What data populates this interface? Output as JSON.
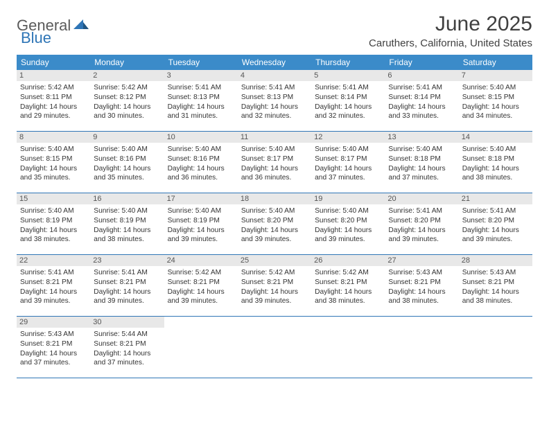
{
  "logo": {
    "part1": "General",
    "part2": "Blue"
  },
  "title": "June 2025",
  "location": "Caruthers, California, United States",
  "colors": {
    "header_bg": "#3b8bc9",
    "header_text": "#ffffff",
    "daynum_bg": "#e8e8e8",
    "daynum_text": "#555555",
    "border": "#2e75b6",
    "logo_gray": "#5a5a5a",
    "logo_blue": "#2e75b6",
    "title_color": "#404040"
  },
  "weekdays": [
    "Sunday",
    "Monday",
    "Tuesday",
    "Wednesday",
    "Thursday",
    "Friday",
    "Saturday"
  ],
  "weeks": [
    [
      {
        "n": "1",
        "sr": "5:42 AM",
        "ss": "8:11 PM",
        "dl": "14 hours and 29 minutes."
      },
      {
        "n": "2",
        "sr": "5:42 AM",
        "ss": "8:12 PM",
        "dl": "14 hours and 30 minutes."
      },
      {
        "n": "3",
        "sr": "5:41 AM",
        "ss": "8:13 PM",
        "dl": "14 hours and 31 minutes."
      },
      {
        "n": "4",
        "sr": "5:41 AM",
        "ss": "8:13 PM",
        "dl": "14 hours and 32 minutes."
      },
      {
        "n": "5",
        "sr": "5:41 AM",
        "ss": "8:14 PM",
        "dl": "14 hours and 32 minutes."
      },
      {
        "n": "6",
        "sr": "5:41 AM",
        "ss": "8:14 PM",
        "dl": "14 hours and 33 minutes."
      },
      {
        "n": "7",
        "sr": "5:40 AM",
        "ss": "8:15 PM",
        "dl": "14 hours and 34 minutes."
      }
    ],
    [
      {
        "n": "8",
        "sr": "5:40 AM",
        "ss": "8:15 PM",
        "dl": "14 hours and 35 minutes."
      },
      {
        "n": "9",
        "sr": "5:40 AM",
        "ss": "8:16 PM",
        "dl": "14 hours and 35 minutes."
      },
      {
        "n": "10",
        "sr": "5:40 AM",
        "ss": "8:16 PM",
        "dl": "14 hours and 36 minutes."
      },
      {
        "n": "11",
        "sr": "5:40 AM",
        "ss": "8:17 PM",
        "dl": "14 hours and 36 minutes."
      },
      {
        "n": "12",
        "sr": "5:40 AM",
        "ss": "8:17 PM",
        "dl": "14 hours and 37 minutes."
      },
      {
        "n": "13",
        "sr": "5:40 AM",
        "ss": "8:18 PM",
        "dl": "14 hours and 37 minutes."
      },
      {
        "n": "14",
        "sr": "5:40 AM",
        "ss": "8:18 PM",
        "dl": "14 hours and 38 minutes."
      }
    ],
    [
      {
        "n": "15",
        "sr": "5:40 AM",
        "ss": "8:19 PM",
        "dl": "14 hours and 38 minutes."
      },
      {
        "n": "16",
        "sr": "5:40 AM",
        "ss": "8:19 PM",
        "dl": "14 hours and 38 minutes."
      },
      {
        "n": "17",
        "sr": "5:40 AM",
        "ss": "8:19 PM",
        "dl": "14 hours and 39 minutes."
      },
      {
        "n": "18",
        "sr": "5:40 AM",
        "ss": "8:20 PM",
        "dl": "14 hours and 39 minutes."
      },
      {
        "n": "19",
        "sr": "5:40 AM",
        "ss": "8:20 PM",
        "dl": "14 hours and 39 minutes."
      },
      {
        "n": "20",
        "sr": "5:41 AM",
        "ss": "8:20 PM",
        "dl": "14 hours and 39 minutes."
      },
      {
        "n": "21",
        "sr": "5:41 AM",
        "ss": "8:20 PM",
        "dl": "14 hours and 39 minutes."
      }
    ],
    [
      {
        "n": "22",
        "sr": "5:41 AM",
        "ss": "8:21 PM",
        "dl": "14 hours and 39 minutes."
      },
      {
        "n": "23",
        "sr": "5:41 AM",
        "ss": "8:21 PM",
        "dl": "14 hours and 39 minutes."
      },
      {
        "n": "24",
        "sr": "5:42 AM",
        "ss": "8:21 PM",
        "dl": "14 hours and 39 minutes."
      },
      {
        "n": "25",
        "sr": "5:42 AM",
        "ss": "8:21 PM",
        "dl": "14 hours and 39 minutes."
      },
      {
        "n": "26",
        "sr": "5:42 AM",
        "ss": "8:21 PM",
        "dl": "14 hours and 38 minutes."
      },
      {
        "n": "27",
        "sr": "5:43 AM",
        "ss": "8:21 PM",
        "dl": "14 hours and 38 minutes."
      },
      {
        "n": "28",
        "sr": "5:43 AM",
        "ss": "8:21 PM",
        "dl": "14 hours and 38 minutes."
      }
    ],
    [
      {
        "n": "29",
        "sr": "5:43 AM",
        "ss": "8:21 PM",
        "dl": "14 hours and 37 minutes."
      },
      {
        "n": "30",
        "sr": "5:44 AM",
        "ss": "8:21 PM",
        "dl": "14 hours and 37 minutes."
      },
      null,
      null,
      null,
      null,
      null
    ]
  ],
  "labels": {
    "sunrise": "Sunrise:",
    "sunset": "Sunset:",
    "daylight": "Daylight:"
  }
}
